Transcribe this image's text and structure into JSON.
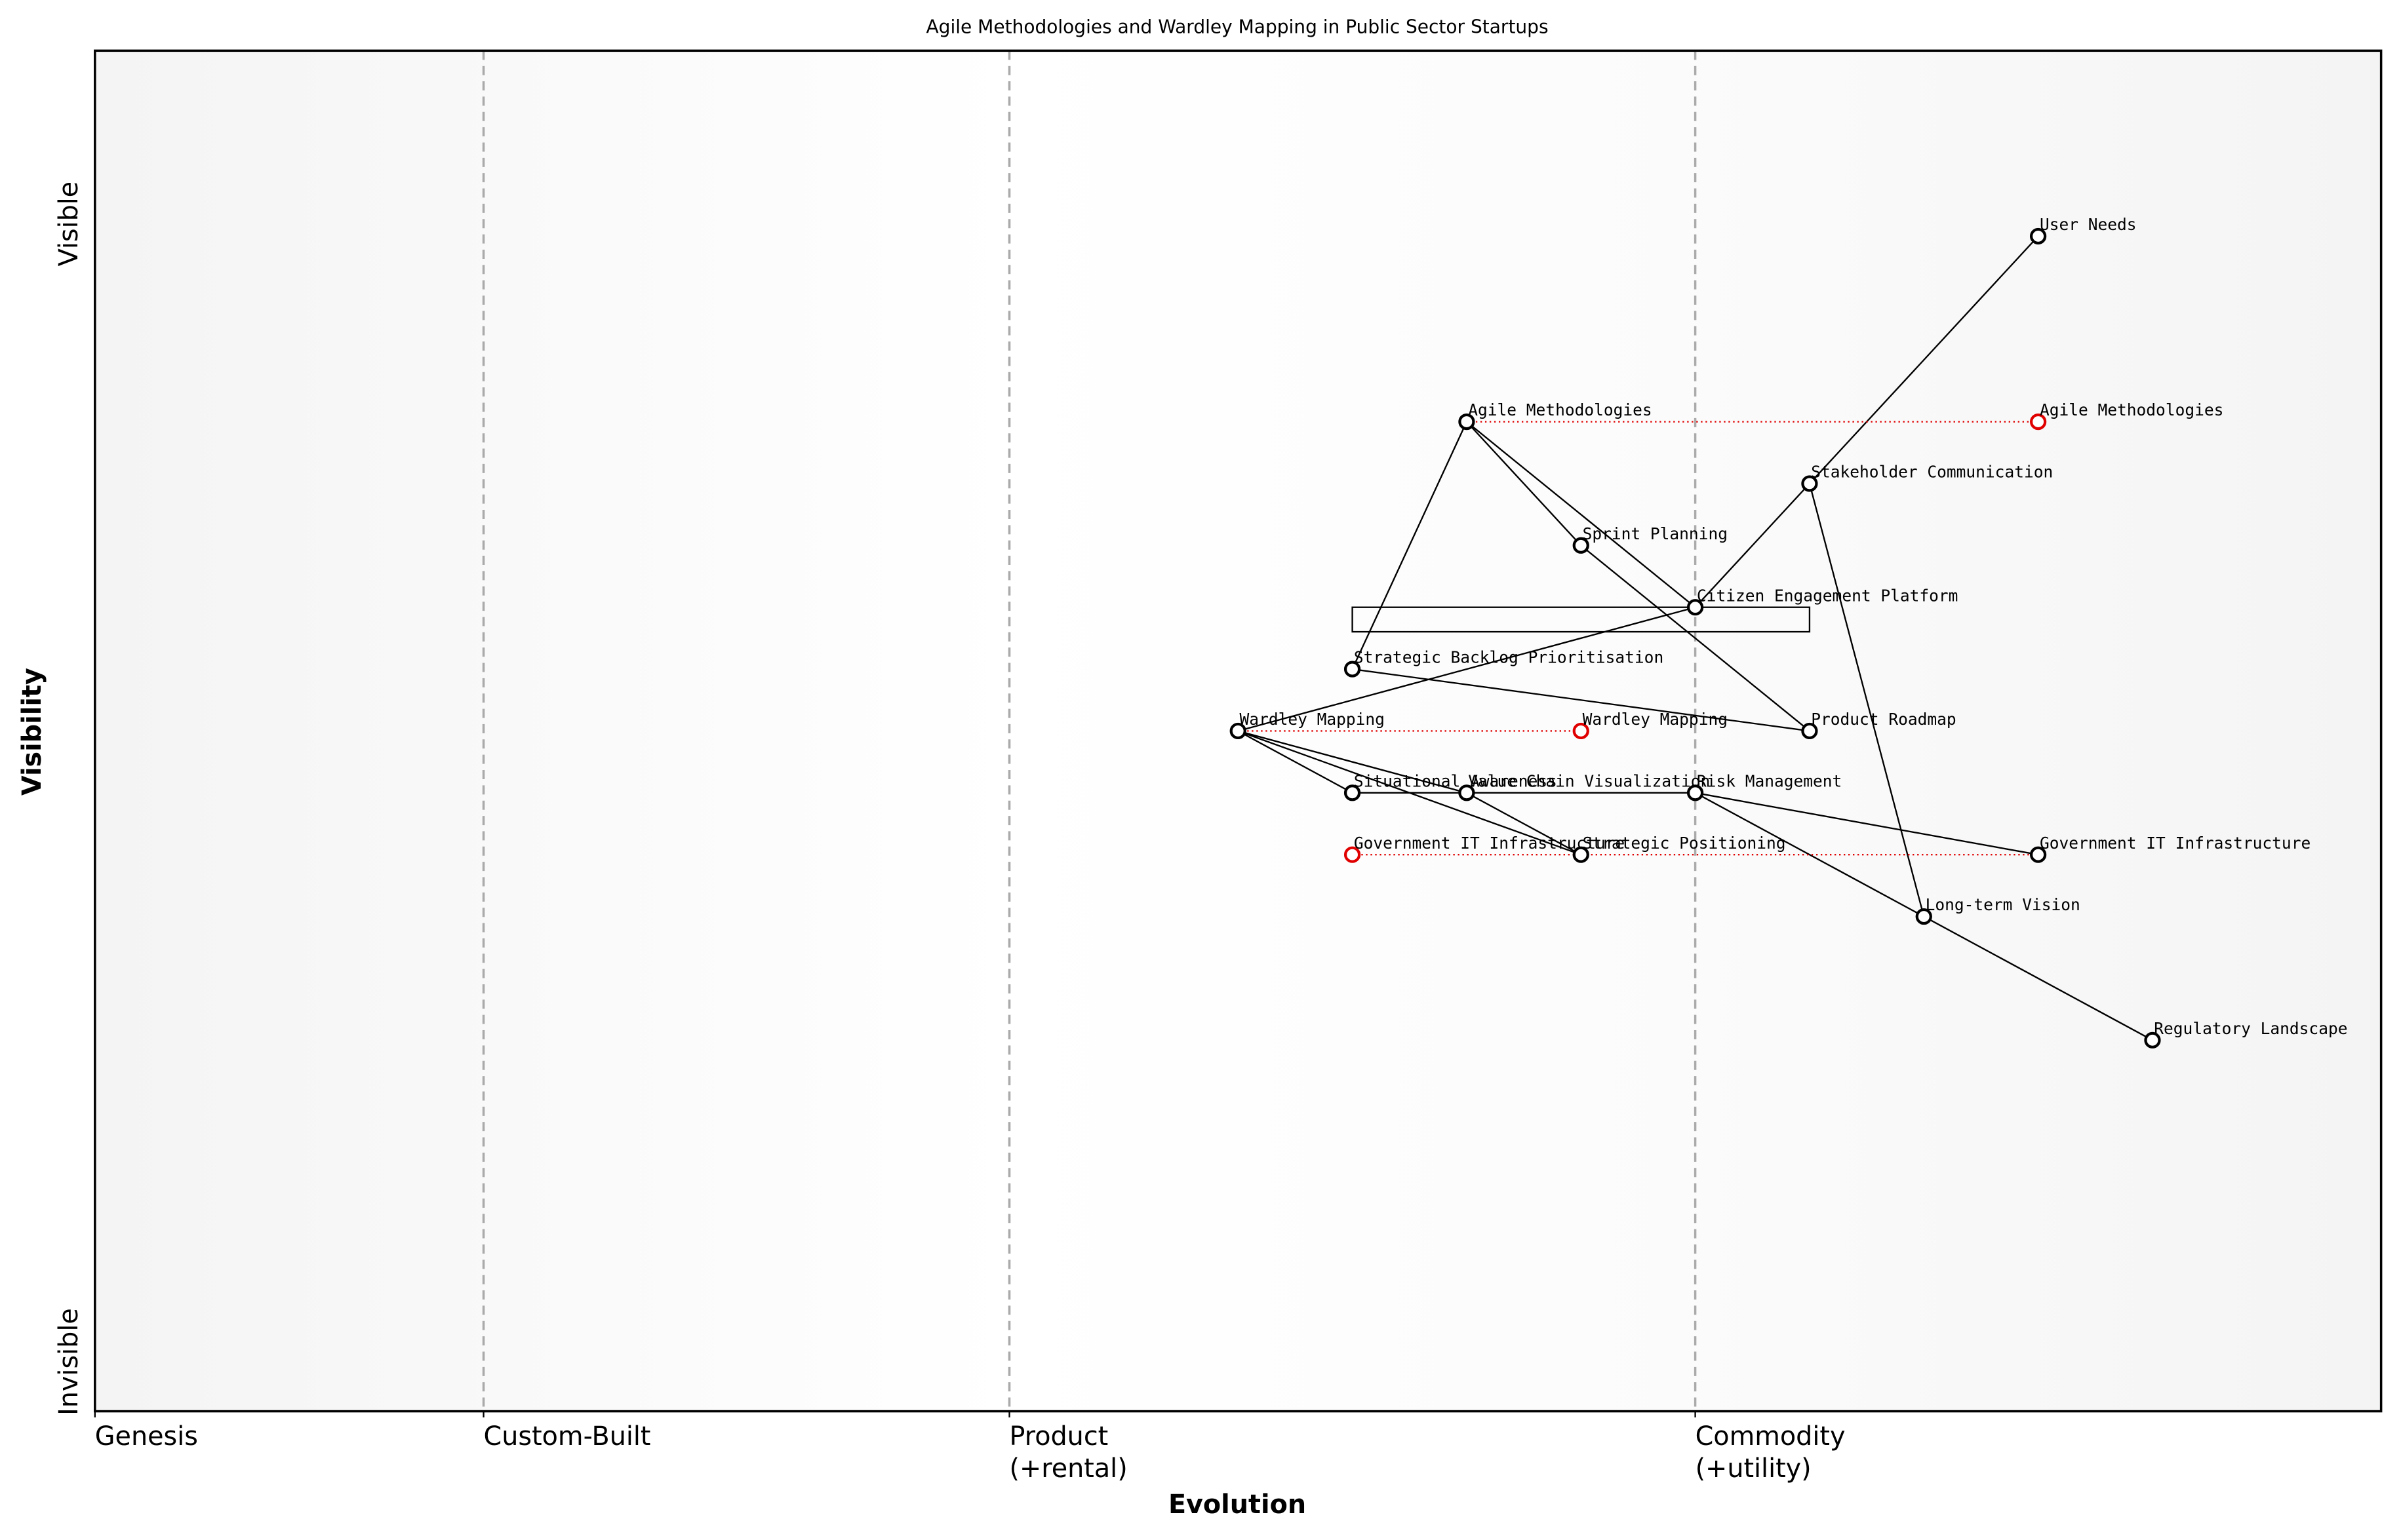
{
  "chart_data": {
    "type": "wardley",
    "title": "Agile Methodologies and Wardley Mapping in Public Sector Startups",
    "xlabel": "Evolution",
    "ylabel": "Visibility",
    "xlim": [
      0,
      1
    ],
    "ylim": [
      0,
      1.1
    ],
    "xticks": [
      {
        "value": 0,
        "label": "Genesis"
      },
      {
        "value": 0.17,
        "label": "Custom-Built"
      },
      {
        "value": 0.4,
        "label": "Product\n(+rental)"
      },
      {
        "value": 0.7,
        "label": "Commodity\n(+utility)"
      }
    ],
    "yticks": [
      {
        "value": 0.04,
        "label": "Invisible"
      },
      {
        "value": 0.96,
        "label": "Visible"
      }
    ],
    "components": [
      {
        "name": "User Needs",
        "x": 0.85,
        "y": 0.95
      },
      {
        "name": "Agile Methodologies",
        "x": 0.6,
        "y": 0.8
      },
      {
        "name": "Stakeholder Communication",
        "x": 0.75,
        "y": 0.75
      },
      {
        "name": "Sprint Planning",
        "x": 0.65,
        "y": 0.7
      },
      {
        "name": "Citizen Engagement Platform",
        "x": 0.7,
        "y": 0.65
      },
      {
        "name": "Strategic Backlog Prioritisation",
        "x": 0.55,
        "y": 0.6
      },
      {
        "name": "Wardley Mapping",
        "x": 0.5,
        "y": 0.55
      },
      {
        "name": "Product Roadmap",
        "x": 0.75,
        "y": 0.55
      },
      {
        "name": "Situational Awareness",
        "x": 0.55,
        "y": 0.5
      },
      {
        "name": "Value Chain Visualization",
        "x": 0.6,
        "y": 0.5
      },
      {
        "name": "Risk Management",
        "x": 0.7,
        "y": 0.5
      },
      {
        "name": "Strategic Positioning",
        "x": 0.65,
        "y": 0.45
      },
      {
        "name": "Government IT Infrastructure",
        "x": 0.85,
        "y": 0.45
      },
      {
        "name": "Long-term Vision",
        "x": 0.8,
        "y": 0.4
      },
      {
        "name": "Regulatory Landscape",
        "x": 0.9,
        "y": 0.3
      }
    ],
    "evolutions": [
      {
        "name": "Agile Methodologies",
        "x": 0.85,
        "y": 0.8
      },
      {
        "name": "Wardley Mapping",
        "x": 0.65,
        "y": 0.55
      },
      {
        "name": "Government IT Infrastructure",
        "x": 0.55,
        "y": 0.45
      }
    ],
    "pipelines": [
      {
        "name": "Citizen Engagement Platform",
        "x_start": 0.55,
        "x_end": 0.75,
        "y": 0.65
      }
    ],
    "links": [
      [
        "User Needs",
        "Citizen Engagement Platform"
      ],
      [
        "Agile Methodologies",
        "Strategic Backlog Prioritisation"
      ],
      [
        "Agile Methodologies",
        "Sprint Planning"
      ],
      [
        "Agile Methodologies",
        "Citizen Engagement Platform"
      ],
      [
        "Sprint Planning",
        "Product Roadmap"
      ],
      [
        "Stakeholder Communication",
        "Long-term Vision"
      ],
      [
        "Strategic Backlog Prioritisation",
        "Product Roadmap"
      ],
      [
        "Wardley Mapping",
        "Citizen Engagement Platform"
      ],
      [
        "Wardley Mapping",
        "Situational Awareness"
      ],
      [
        "Wardley Mapping",
        "Value Chain Visualization"
      ],
      [
        "Wardley Mapping",
        "Strategic Positioning"
      ],
      [
        "Situational Awareness",
        "Risk Management"
      ],
      [
        "Value Chain Visualization",
        "Strategic Positioning"
      ],
      [
        "Risk Management",
        "Government IT Infrastructure"
      ],
      [
        "Risk Management",
        "Long-term Vision"
      ],
      [
        "Long-term Vision",
        "Regulatory Landscape"
      ]
    ],
    "color": "#000000",
    "evolve_color": "#e00000"
  }
}
